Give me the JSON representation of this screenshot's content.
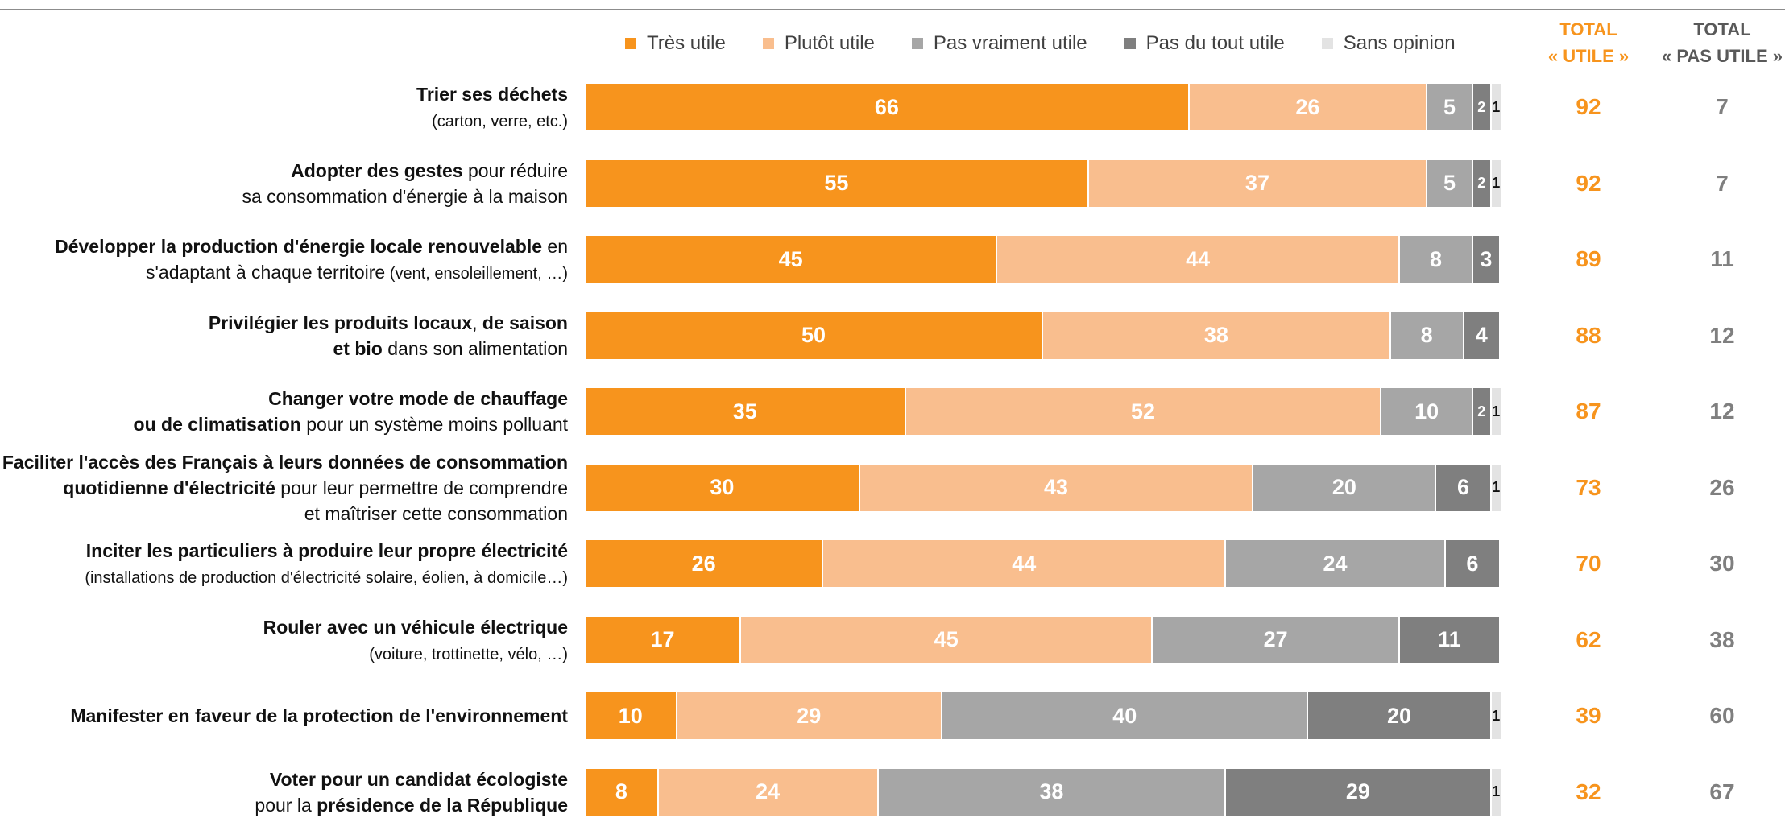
{
  "chart_data": {
    "type": "bar",
    "orientation": "horizontal",
    "stacked": true,
    "colors": {
      "Très utile": "#f7941d",
      "Plutôt utile": "#f9be8e",
      "Pas vraiment utile": "#a6a6a6",
      "Pas du tout utile": "#7f7f7f",
      "Sans opinion": "#e3e3e3"
    },
    "legend": [
      "Très utile",
      "Plutôt utile",
      "Pas vraiment utile",
      "Pas du tout utile",
      "Sans opinion"
    ],
    "legend_position": "top",
    "total_headers": {
      "utile": [
        "TOTAL",
        "« UTILE »"
      ],
      "pas_utile": [
        "TOTAL",
        "« PAS UTILE »"
      ]
    },
    "rows": [
      {
        "label_lines": [
          [
            {
              "t": "Trier ses déchets",
              "b": true
            }
          ],
          [
            {
              "t": "(carton, verre, etc.)",
              "b": false,
              "s": true
            }
          ]
        ],
        "values": [
          66,
          26,
          5,
          2,
          1
        ],
        "total_utile": 92,
        "total_pas_utile": 7
      },
      {
        "label_lines": [
          [
            {
              "t": "Adopter des gestes",
              "b": true
            },
            {
              "t": " pour réduire",
              "b": false
            }
          ],
          [
            {
              "t": "sa consommation d'énergie à la maison",
              "b": false
            }
          ]
        ],
        "values": [
          55,
          37,
          5,
          2,
          1
        ],
        "total_utile": 92,
        "total_pas_utile": 7
      },
      {
        "label_lines": [
          [
            {
              "t": "Développer la production d'énergie locale renouvelable",
              "b": true
            },
            {
              "t": " en",
              "b": false
            }
          ],
          [
            {
              "t": "s'adaptant à chaque territoire",
              "b": false
            },
            {
              "t": " (vent, ensoleillement, …)",
              "b": false,
              "s": true
            }
          ]
        ],
        "values": [
          45,
          44,
          8,
          3,
          0
        ],
        "total_utile": 89,
        "total_pas_utile": 11
      },
      {
        "label_lines": [
          [
            {
              "t": "Privilégier les produits locaux",
              "b": true
            },
            {
              "t": ", ",
              "b": false
            },
            {
              "t": "de saison",
              "b": true
            }
          ],
          [
            {
              "t": "et bio",
              "b": true
            },
            {
              "t": " dans son alimentation",
              "b": false
            }
          ]
        ],
        "values": [
          50,
          38,
          8,
          4,
          0
        ],
        "total_utile": 88,
        "total_pas_utile": 12
      },
      {
        "label_lines": [
          [
            {
              "t": "Changer votre mode de chauffage",
              "b": true
            }
          ],
          [
            {
              "t": "ou de climatisation",
              "b": true
            },
            {
              "t": " pour un système moins polluant",
              "b": false
            }
          ]
        ],
        "values": [
          35,
          52,
          10,
          2,
          1
        ],
        "total_utile": 87,
        "total_pas_utile": 12
      },
      {
        "label_lines": [
          [
            {
              "t": "Faciliter l'accès des Français à leurs données de consommation",
              "b": true
            }
          ],
          [
            {
              "t": "quotidienne d'électricité",
              "b": true
            },
            {
              "t": " pour leur permettre de comprendre",
              "b": false
            }
          ],
          [
            {
              "t": "et maîtriser cette consommation",
              "b": false
            }
          ]
        ],
        "values": [
          30,
          43,
          20,
          6,
          1
        ],
        "total_utile": 73,
        "total_pas_utile": 26
      },
      {
        "label_lines": [
          [
            {
              "t": "Inciter les particuliers à produire leur propre électricité",
              "b": true
            }
          ],
          [
            {
              "t": "(installations de production d'électricité solaire, éolien, à domicile…)",
              "b": false,
              "s": true
            }
          ]
        ],
        "values": [
          26,
          44,
          24,
          6,
          0
        ],
        "total_utile": 70,
        "total_pas_utile": 30
      },
      {
        "label_lines": [
          [
            {
              "t": "Rouler avec un véhicule électrique",
              "b": true
            }
          ],
          [
            {
              "t": "(voiture, trottinette, vélo, …)",
              "b": false,
              "s": true
            }
          ]
        ],
        "values": [
          17,
          45,
          27,
          11,
          0
        ],
        "total_utile": 62,
        "total_pas_utile": 38
      },
      {
        "label_lines": [
          [
            {
              "t": "Manifester en faveur de la protection de l'environnement",
              "b": true
            }
          ]
        ],
        "values": [
          10,
          29,
          40,
          20,
          1
        ],
        "total_utile": 39,
        "total_pas_utile": 60
      },
      {
        "label_lines": [
          [
            {
              "t": "Voter pour un candidat écologiste",
              "b": true
            }
          ],
          [
            {
              "t": "pour la ",
              "b": false
            },
            {
              "t": "présidence de la République",
              "b": true
            }
          ]
        ],
        "values": [
          8,
          24,
          38,
          29,
          1
        ],
        "total_utile": 32,
        "total_pas_utile": 67
      }
    ]
  }
}
